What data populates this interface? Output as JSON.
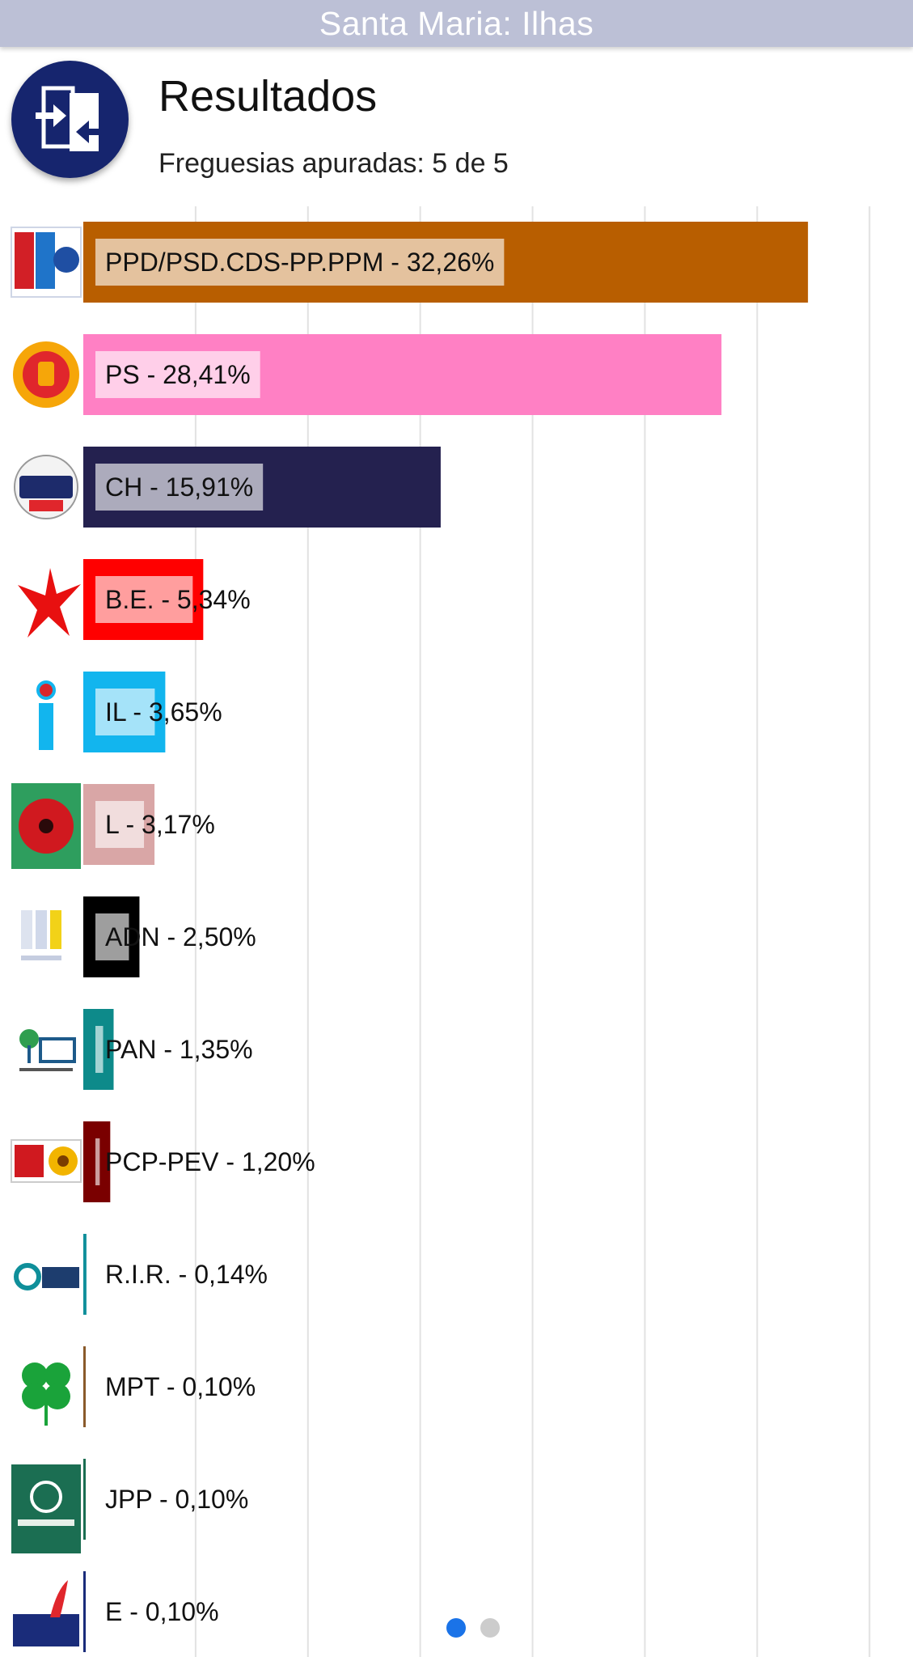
{
  "topbar": {
    "title": "Santa Maria: Ilhas"
  },
  "header": {
    "icon": "swap-arrows-icon",
    "title": "Resultados",
    "subtitle": "Freguesias apuradas: 5 de 5"
  },
  "pager": {
    "pages": 2,
    "current": 1
  },
  "chart_data": {
    "type": "bar",
    "orientation": "horizontal",
    "xlim": [
      0,
      36
    ],
    "grid": true,
    "bars": [
      {
        "party": "PPD/PSD.CDS-PP.PPM",
        "label": "PPD/PSD.CDS-PP.PPM - 32,26%",
        "value": 32.26,
        "color": "#b85e00",
        "logo": "ppd-psd-cds-ppm-logo"
      },
      {
        "party": "PS",
        "label": "PS - 28,41%",
        "value": 28.41,
        "color": "#ff80c4",
        "logo": "ps-fist-logo"
      },
      {
        "party": "CH",
        "label": "CH - 15,91%",
        "value": 15.91,
        "color": "#24214f",
        "logo": "chega-logo"
      },
      {
        "party": "B.E.",
        "label": "B.E. - 5,34%",
        "value": 5.34,
        "color": "#ff0000",
        "logo": "be-star-logo"
      },
      {
        "party": "IL",
        "label": "IL - 3,65%",
        "value": 3.65,
        "color": "#12b5ee",
        "logo": "il-logo"
      },
      {
        "party": "L",
        "label": "L - 3,17%",
        "value": 3.17,
        "color": "#d9a6a6",
        "logo": "livre-poppy-logo"
      },
      {
        "party": "ADN",
        "label": "ADN - 2,50%",
        "value": 2.5,
        "color": "#000000",
        "logo": "adn-logo"
      },
      {
        "party": "PAN",
        "label": "PAN - 1,35%",
        "value": 1.35,
        "color": "#0d8a8a",
        "logo": "pan-logo"
      },
      {
        "party": "PCP-PEV",
        "label": "PCP-PEV - 1,20%",
        "value": 1.2,
        "color": "#7a0000",
        "logo": "pcp-pev-logo"
      },
      {
        "party": "R.I.R.",
        "label": "R.I.R. - 0,14%",
        "value": 0.14,
        "color": "#0f8f9a",
        "logo": "rir-logo"
      },
      {
        "party": "MPT",
        "label": "MPT - 0,10%",
        "value": 0.1,
        "color": "#8a5a2b",
        "logo": "mpt-clover-logo"
      },
      {
        "party": "JPP",
        "label": "JPP - 0,10%",
        "value": 0.1,
        "color": "#1b6e52",
        "logo": "jpp-logo"
      },
      {
        "party": "E",
        "label": "E - 0,10%",
        "value": 0.1,
        "color": "#1a2c7a",
        "logo": "ergue-te-logo"
      }
    ]
  }
}
